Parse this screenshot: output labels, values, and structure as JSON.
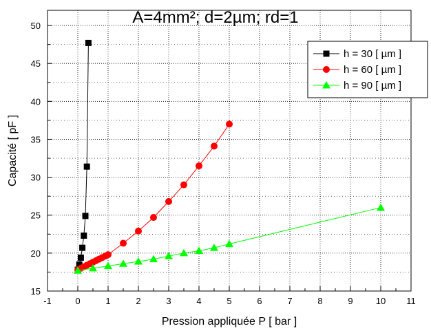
{
  "chart_data": {
    "type": "line",
    "title": "A=4mm²; d=2µm; rd=1",
    "xlabel": "Pression appliquée P  [ bar ]",
    "ylabel": "Capacité [ pF ]",
    "xlim": [
      -1,
      11
    ],
    "ylim": [
      15,
      52
    ],
    "x_ticks": [
      -1,
      0,
      1,
      2,
      3,
      4,
      5,
      6,
      7,
      8,
      9,
      10,
      11
    ],
    "y_ticks": [
      15,
      20,
      25,
      30,
      35,
      40,
      45,
      50
    ],
    "x_tick_labels": [
      "-1",
      "0",
      "1",
      "2",
      "3",
      "4",
      "5",
      "6",
      "7",
      "8",
      "9",
      "10",
      "11"
    ],
    "y_tick_labels": [
      "15",
      "20",
      "25",
      "30",
      "35",
      "40",
      "45",
      "50"
    ],
    "grid": true,
    "legend_position": "top-right",
    "series": [
      {
        "name": "h = 30 [ µm ]",
        "color": "#000000",
        "marker": "square",
        "x": [
          0,
          0.05,
          0.1,
          0.15,
          0.2,
          0.25,
          0.3,
          0.35
        ],
        "y": [
          17.8,
          18.5,
          19.4,
          20.7,
          22.3,
          24.9,
          31.4,
          47.7
        ]
      },
      {
        "name": "h = 60 [ µm ]",
        "color": "#ff0000",
        "marker": "circle",
        "x": [
          0,
          0.1,
          0.2,
          0.3,
          0.4,
          0.5,
          0.6,
          0.7,
          0.8,
          0.9,
          1.0,
          1.5,
          2.0,
          2.5,
          3.0,
          3.5,
          4.0,
          4.5,
          5.0
        ],
        "y": [
          17.8,
          18.0,
          18.2,
          18.4,
          18.6,
          18.8,
          19.0,
          19.2,
          19.4,
          19.6,
          19.8,
          21.3,
          22.9,
          24.7,
          26.8,
          29.0,
          31.5,
          34.1,
          37.0
        ]
      },
      {
        "name": "h = 90 [ µm ]",
        "color": "#00ff00",
        "marker": "triangle",
        "x": [
          0,
          0.5,
          1.0,
          1.5,
          2.0,
          2.5,
          3.0,
          3.5,
          4.0,
          4.5,
          5.0,
          10.0
        ],
        "y": [
          17.7,
          18.0,
          18.3,
          18.6,
          18.9,
          19.2,
          19.6,
          20.0,
          20.3,
          20.7,
          21.2,
          26.0
        ]
      }
    ]
  }
}
